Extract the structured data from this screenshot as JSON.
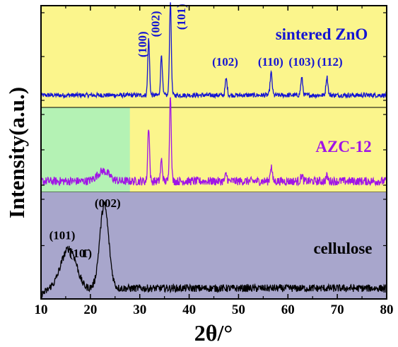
{
  "chart_data": {
    "type": "line",
    "xlabel": "2θ/°",
    "ylabel": "Intensity(a.u.)",
    "xlim": [
      10,
      80
    ],
    "x_ticks": [
      10,
      20,
      30,
      40,
      50,
      60,
      70,
      80
    ],
    "y_ticks_labeled": false,
    "grid": false,
    "legend": "none",
    "panels": [
      {
        "name": "sintered ZnO",
        "background": "#fbf58c",
        "y_range": [
          0,
          1
        ]
      },
      {
        "name": "AZC-12",
        "background": "#fbf58c",
        "inset_background": "#b4f2b4",
        "inset_x_range": [
          10,
          28
        ],
        "y_range": [
          0,
          1
        ]
      },
      {
        "name": "cellulose",
        "background": "#a8a6cc",
        "y_range": [
          0,
          1
        ]
      }
    ],
    "series": [
      {
        "name": "sintered ZnO",
        "color": "#1414d2",
        "baseline": 0.12,
        "noise": 0.045,
        "peaks": [
          {
            "x": 31.8,
            "h": 0.55,
            "w": 0.18
          },
          {
            "x": 34.4,
            "h": 0.4,
            "w": 0.18
          },
          {
            "x": 36.2,
            "h": 0.93,
            "w": 0.18
          },
          {
            "x": 47.5,
            "h": 0.16,
            "w": 0.2
          },
          {
            "x": 56.6,
            "h": 0.22,
            "w": 0.2
          },
          {
            "x": 62.8,
            "h": 0.17,
            "w": 0.2
          },
          {
            "x": 67.9,
            "h": 0.18,
            "w": 0.2
          }
        ]
      },
      {
        "name": "AZC-12",
        "color": "#a014e6",
        "baseline": 0.13,
        "noise": 0.1,
        "peaks": [
          {
            "x": 22.6,
            "h": 0.12,
            "w": 1.2
          },
          {
            "x": 31.8,
            "h": 0.65,
            "w": 0.18
          },
          {
            "x": 34.4,
            "h": 0.25,
            "w": 0.18
          },
          {
            "x": 36.2,
            "h": 1.02,
            "w": 0.18
          },
          {
            "x": 47.5,
            "h": 0.08,
            "w": 0.2
          },
          {
            "x": 56.6,
            "h": 0.18,
            "w": 0.2
          },
          {
            "x": 62.8,
            "h": 0.07,
            "w": 0.2
          },
          {
            "x": 67.9,
            "h": 0.06,
            "w": 0.2
          }
        ]
      },
      {
        "name": "cellulose",
        "color": "#000000",
        "baseline": 0.1,
        "noise": 0.07,
        "peaks": [
          {
            "x": 15.0,
            "h": 0.28,
            "w": 1.3
          },
          {
            "x": 16.6,
            "h": 0.18,
            "w": 1.1
          },
          {
            "x": 22.8,
            "h": 0.78,
            "w": 0.9
          }
        ]
      }
    ],
    "annotations": [
      {
        "text": "(100)",
        "x": 31.3,
        "panel": 0,
        "y": 0.62,
        "rotate": -90,
        "color": "#1414d2"
      },
      {
        "text": "(002)",
        "x": 34.0,
        "panel": 0,
        "y": 0.82,
        "rotate": -90,
        "color": "#1414d2"
      },
      {
        "text": "(101)",
        "x": 39.2,
        "panel": 0,
        "y": 0.89,
        "rotate": -90,
        "color": "#1414d2"
      },
      {
        "text": "(102)",
        "x": 47.3,
        "panel": 0,
        "y": 0.41,
        "rotate": 0,
        "color": "#1414d2"
      },
      {
        "text": "(110)",
        "x": 56.5,
        "panel": 0,
        "y": 0.41,
        "rotate": 0,
        "color": "#1414d2"
      },
      {
        "text": "(103)",
        "x": 62.8,
        "panel": 0,
        "y": 0.41,
        "rotate": 0,
        "color": "#1414d2"
      },
      {
        "text": "(112)",
        "x": 68.5,
        "panel": 0,
        "y": 0.41,
        "rotate": 0,
        "color": "#1414d2"
      },
      {
        "text": "(002)",
        "x": 23.5,
        "panel": 2,
        "y": 0.86,
        "rotate": 0,
        "color": "#000000"
      },
      {
        "text": "(101)",
        "x": 14.3,
        "panel": 2,
        "y": 0.56,
        "rotate": 0,
        "color": "#000000"
      },
      {
        "text": "(10",
        "x": 17.3,
        "panel": 2,
        "y": 0.39,
        "rotate": 0,
        "color": "#000000"
      },
      {
        "text": "1̄)",
        "x": 19.3,
        "panel": 2,
        "y": 0.39,
        "rotate": 0,
        "color": "#000000"
      }
    ]
  }
}
